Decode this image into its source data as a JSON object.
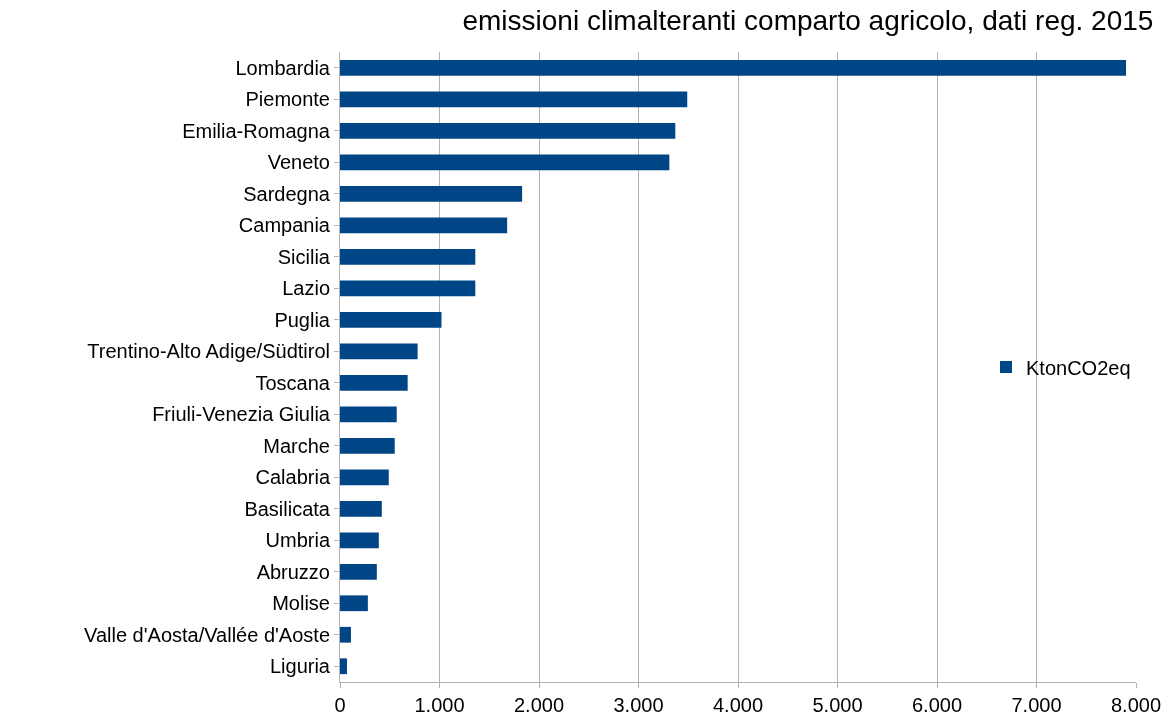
{
  "chart_data": {
    "type": "bar",
    "orientation": "horizontal",
    "title": "emissioni climalteranti comparto agricolo, dati reg. 2015",
    "categories": [
      "Lombardia",
      "Piemonte",
      "Emilia-Romagna",
      "Veneto",
      "Sardegna",
      "Campania",
      "Sicilia",
      "Lazio",
      "Puglia",
      "Trentino-Alto Adige/Südtirol",
      "Toscana",
      "Friuli-Venezia Giulia",
      "Marche",
      "Calabria",
      "Basilicata",
      "Umbria",
      "Abruzzo",
      "Molise",
      "Valle d'Aosta/Vallée d'Aoste",
      "Liguria"
    ],
    "series": [
      {
        "name": "KtonCO2eq",
        "color": "#004586",
        "values": [
          7900,
          3490,
          3370,
          3310,
          1830,
          1680,
          1360,
          1360,
          1020,
          780,
          680,
          570,
          550,
          490,
          420,
          390,
          370,
          280,
          110,
          70
        ]
      }
    ],
    "xlim": [
      0,
      8000
    ],
    "xticks": [
      0,
      {
        "value": 1000,
        "label": "1.000"
      },
      {
        "value": 2000,
        "label": "2.000"
      },
      {
        "value": 3000,
        "label": "3.000"
      },
      {
        "value": 4000,
        "label": "4.000"
      },
      {
        "value": 5000,
        "label": "5.000"
      },
      {
        "value": 6000,
        "label": "6.000"
      },
      {
        "value": 7000,
        "label": "7.000"
      },
      {
        "value": 8000,
        "label": "8.000"
      }
    ],
    "grid": "x",
    "legend": "right"
  }
}
